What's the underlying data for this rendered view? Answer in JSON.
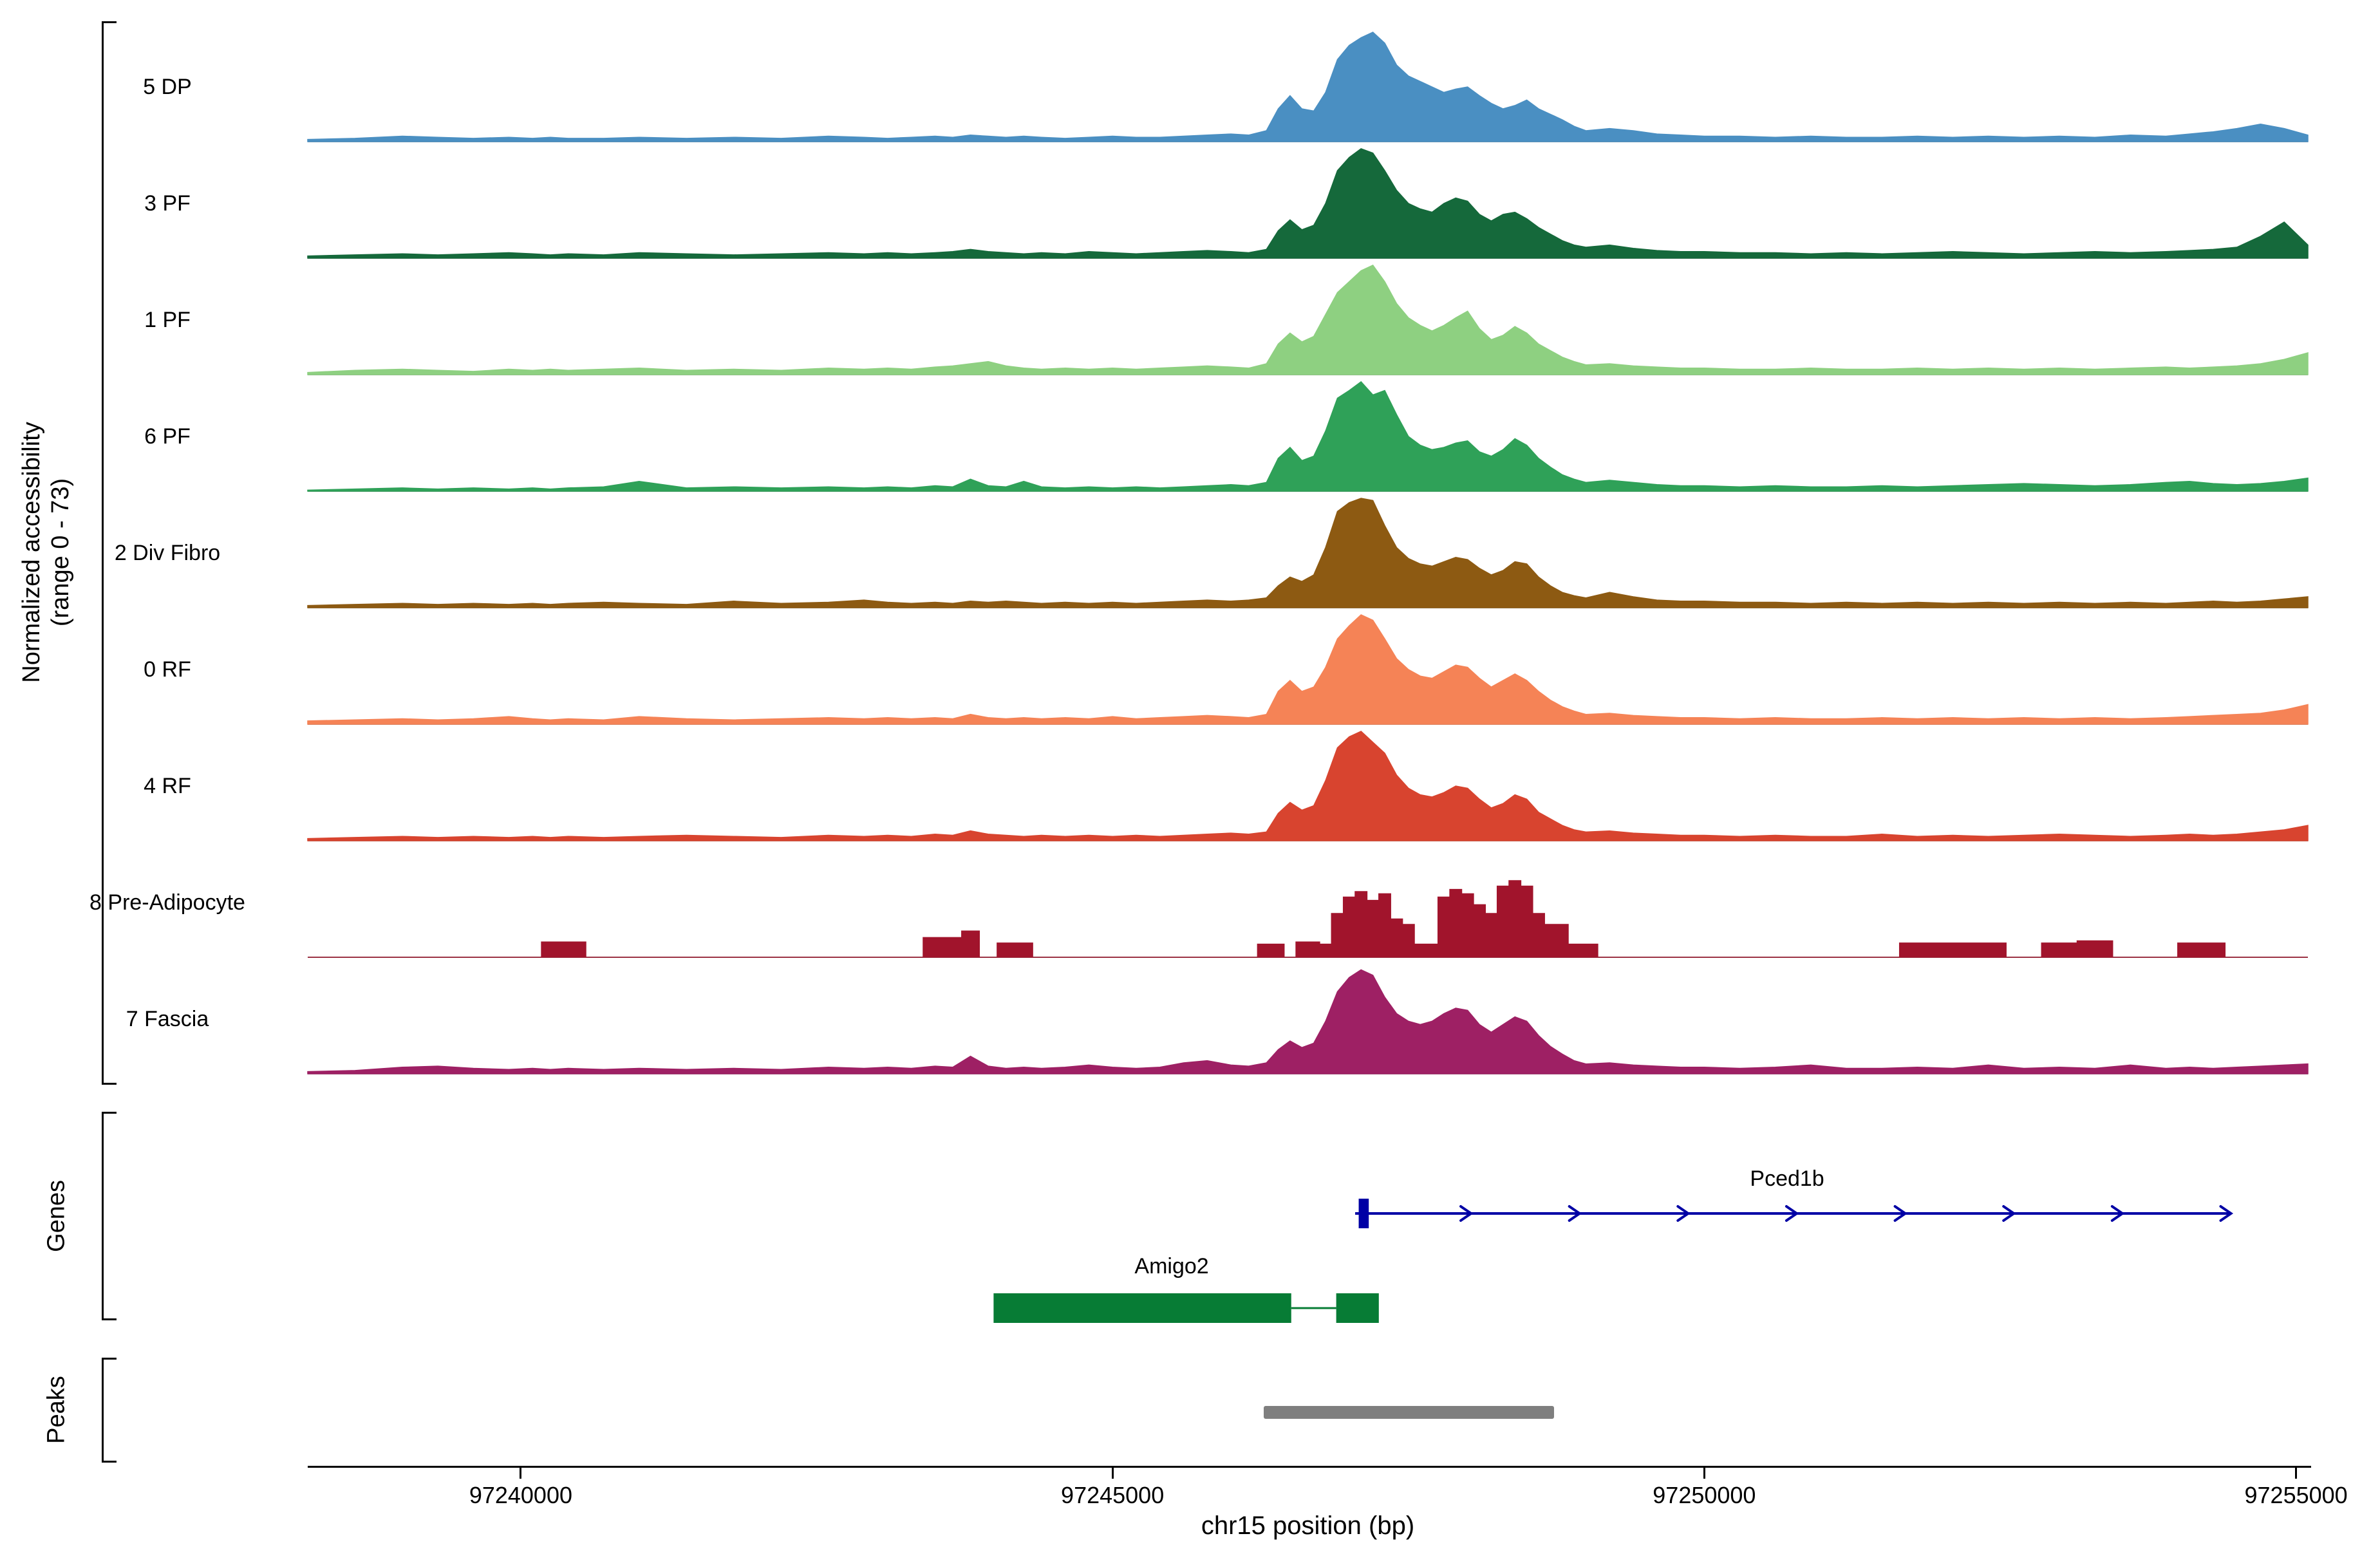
{
  "figure": {
    "y_axis_label_line1": "Normalized accessibility",
    "y_axis_label_line2": "(range 0 - 73)",
    "genes_section_label": "Genes",
    "peaks_section_label": "Peaks"
  },
  "chart_data": {
    "type": "area",
    "title": "",
    "xlabel": "chr15 position (bp)",
    "ylabel": "Normalized accessibility (range 0 - 73)",
    "xlim": [
      97238200,
      97255100
    ],
    "x_ticks": [
      97240000,
      97245000,
      97250000,
      97255000
    ],
    "x_tick_labels": [
      "97240000",
      "97245000",
      "97250000",
      "97255000"
    ],
    "baseline_color": "#8C8C8C",
    "x": [
      97238200,
      97238600,
      97239000,
      97239300,
      97239600,
      97239900,
      97240100,
      97240250,
      97240400,
      97240700,
      97241000,
      97241400,
      97241800,
      97242200,
      97242600,
      97242900,
      97243100,
      97243300,
      97243500,
      97243650,
      97243800,
      97243950,
      97244100,
      97244250,
      97244400,
      97244600,
      97244800,
      97245000,
      97245200,
      97245400,
      97245600,
      97245800,
      97246000,
      97246150,
      97246300,
      97246400,
      97246500,
      97246600,
      97246700,
      97246800,
      97246900,
      97247000,
      97247100,
      97247200,
      97247300,
      97247400,
      97247500,
      97247600,
      97247700,
      97247800,
      97247900,
      97248000,
      97248100,
      97248200,
      97248300,
      97248400,
      97248500,
      97248600,
      97248700,
      97248800,
      97248900,
      97249000,
      97249200,
      97249400,
      97249600,
      97249800,
      97250000,
      97250300,
      97250600,
      97250900,
      97251200,
      97251500,
      97251800,
      97252100,
      97252400,
      97252700,
      97253000,
      97253300,
      97253600,
      97253900,
      97254100,
      97254300,
      97254500,
      97254700,
      97254900,
      97255100
    ],
    "tracks": [
      {
        "label": "5 DP",
        "color": "#4A8FC2",
        "style": "area",
        "values": [
          2,
          3,
          5,
          4,
          3,
          4,
          3,
          4,
          3,
          3,
          4,
          3,
          4,
          3,
          5,
          4,
          3,
          4,
          5,
          4,
          6,
          5,
          4,
          5,
          4,
          3,
          4,
          5,
          4,
          4,
          5,
          6,
          7,
          6,
          10,
          30,
          42,
          30,
          28,
          45,
          75,
          88,
          95,
          100,
          90,
          70,
          60,
          55,
          50,
          45,
          48,
          50,
          42,
          35,
          30,
          33,
          38,
          30,
          25,
          20,
          14,
          10,
          12,
          10,
          7,
          6,
          5,
          5,
          4,
          5,
          4,
          4,
          5,
          4,
          5,
          4,
          5,
          4,
          6,
          5,
          7,
          9,
          12,
          16,
          12,
          6
        ]
      },
      {
        "label": "3 PF",
        "color": "#15693B",
        "style": "area",
        "values": [
          2,
          3,
          4,
          3,
          4,
          5,
          4,
          3,
          4,
          3,
          5,
          4,
          3,
          4,
          5,
          4,
          5,
          4,
          5,
          6,
          8,
          6,
          5,
          4,
          5,
          4,
          6,
          5,
          4,
          5,
          6,
          7,
          6,
          5,
          8,
          25,
          35,
          26,
          30,
          50,
          80,
          92,
          100,
          96,
          80,
          62,
          50,
          45,
          42,
          50,
          55,
          52,
          40,
          34,
          40,
          42,
          36,
          28,
          22,
          16,
          12,
          10,
          12,
          9,
          7,
          6,
          6,
          5,
          5,
          4,
          5,
          4,
          5,
          6,
          5,
          4,
          5,
          6,
          5,
          6,
          7,
          8,
          10,
          20,
          33,
          12
        ]
      },
      {
        "label": "1 PF",
        "color": "#8ED081",
        "style": "area",
        "values": [
          2,
          4,
          5,
          4,
          3,
          5,
          4,
          5,
          4,
          5,
          6,
          4,
          5,
          4,
          6,
          5,
          6,
          5,
          7,
          8,
          10,
          12,
          8,
          6,
          5,
          6,
          5,
          6,
          5,
          6,
          7,
          8,
          7,
          6,
          10,
          28,
          38,
          30,
          35,
          55,
          75,
          85,
          95,
          100,
          85,
          65,
          52,
          45,
          40,
          45,
          52,
          58,
          42,
          32,
          36,
          44,
          38,
          28,
          22,
          16,
          12,
          9,
          10,
          8,
          7,
          6,
          6,
          5,
          5,
          6,
          5,
          5,
          6,
          5,
          6,
          5,
          6,
          5,
          6,
          7,
          6,
          7,
          8,
          10,
          14,
          20
        ]
      },
      {
        "label": "6 PF",
        "color": "#2FA158",
        "style": "area",
        "values": [
          1,
          2,
          3,
          2,
          3,
          2,
          3,
          2,
          3,
          4,
          9,
          3,
          4,
          3,
          4,
          3,
          4,
          3,
          5,
          4,
          11,
          5,
          4,
          9,
          4,
          3,
          4,
          3,
          4,
          3,
          4,
          5,
          6,
          5,
          8,
          30,
          40,
          28,
          32,
          55,
          85,
          92,
          100,
          88,
          92,
          70,
          50,
          42,
          38,
          40,
          44,
          46,
          36,
          32,
          38,
          48,
          42,
          30,
          22,
          15,
          11,
          8,
          10,
          8,
          6,
          5,
          5,
          4,
          5,
          4,
          4,
          5,
          4,
          5,
          6,
          7,
          6,
          5,
          6,
          8,
          9,
          7,
          6,
          7,
          9,
          12
        ]
      },
      {
        "label": "2 Div Fibro",
        "color": "#8D5A12",
        "style": "area",
        "values": [
          2,
          3,
          4,
          3,
          4,
          3,
          4,
          3,
          4,
          5,
          4,
          3,
          6,
          4,
          5,
          7,
          5,
          4,
          5,
          4,
          6,
          5,
          6,
          5,
          4,
          5,
          4,
          5,
          4,
          5,
          6,
          7,
          6,
          7,
          9,
          20,
          28,
          24,
          30,
          55,
          88,
          96,
          100,
          98,
          75,
          55,
          45,
          40,
          38,
          42,
          46,
          44,
          36,
          30,
          34,
          42,
          40,
          28,
          20,
          14,
          11,
          9,
          14,
          10,
          7,
          6,
          6,
          5,
          5,
          4,
          5,
          4,
          5,
          4,
          5,
          4,
          5,
          4,
          5,
          4,
          5,
          6,
          5,
          6,
          8,
          10
        ]
      },
      {
        "label": "0 RF",
        "color": "#F58356",
        "style": "area",
        "values": [
          3,
          4,
          5,
          4,
          5,
          7,
          5,
          4,
          5,
          4,
          7,
          5,
          4,
          5,
          6,
          5,
          6,
          5,
          6,
          5,
          9,
          6,
          5,
          6,
          5,
          6,
          5,
          7,
          5,
          6,
          7,
          8,
          7,
          6,
          9,
          30,
          40,
          30,
          34,
          52,
          78,
          90,
          100,
          95,
          78,
          60,
          50,
          44,
          42,
          48,
          54,
          52,
          42,
          34,
          40,
          46,
          40,
          30,
          22,
          16,
          12,
          9,
          10,
          8,
          7,
          6,
          6,
          5,
          6,
          5,
          5,
          6,
          5,
          6,
          5,
          6,
          5,
          6,
          5,
          6,
          7,
          8,
          9,
          10,
          13,
          18
        ]
      },
      {
        "label": "4 RF",
        "color": "#D8442F",
        "style": "area",
        "values": [
          2,
          3,
          4,
          3,
          4,
          3,
          4,
          3,
          4,
          3,
          4,
          5,
          4,
          3,
          5,
          4,
          5,
          4,
          6,
          5,
          9,
          6,
          5,
          4,
          5,
          4,
          5,
          4,
          5,
          4,
          5,
          6,
          7,
          6,
          8,
          25,
          35,
          28,
          32,
          55,
          85,
          95,
          100,
          90,
          80,
          60,
          48,
          42,
          40,
          44,
          50,
          48,
          38,
          30,
          34,
          42,
          38,
          26,
          20,
          14,
          10,
          8,
          9,
          7,
          6,
          5,
          5,
          4,
          5,
          4,
          4,
          6,
          4,
          5,
          4,
          5,
          6,
          5,
          4,
          5,
          6,
          5,
          6,
          8,
          10,
          14
        ]
      },
      {
        "label": "8 Pre-Adipocyte",
        "color": "#A1142C",
        "style": "step",
        "values": [
          0,
          0,
          0,
          0,
          0,
          0,
          0,
          14,
          14,
          0,
          0,
          0,
          0,
          0,
          0,
          0,
          0,
          0,
          18,
          18,
          24,
          0,
          13,
          13,
          0,
          0,
          0,
          0,
          0,
          0,
          0,
          0,
          0,
          0,
          12,
          12,
          0,
          14,
          14,
          12,
          40,
          55,
          60,
          52,
          58,
          35,
          30,
          12,
          12,
          55,
          62,
          58,
          48,
          40,
          65,
          70,
          65,
          40,
          30,
          30,
          12,
          12,
          0,
          0,
          0,
          0,
          0,
          0,
          0,
          0,
          0,
          0,
          13,
          13,
          13,
          0,
          13,
          15,
          0,
          0,
          13,
          13,
          0,
          0,
          0,
          0
        ]
      },
      {
        "label": "7 Fascia",
        "color": "#9E2064",
        "style": "area",
        "values": [
          2,
          3,
          6,
          7,
          5,
          4,
          5,
          4,
          5,
          4,
          5,
          4,
          5,
          4,
          6,
          5,
          6,
          5,
          7,
          6,
          16,
          7,
          5,
          6,
          5,
          6,
          8,
          6,
          5,
          6,
          10,
          12,
          8,
          7,
          10,
          22,
          30,
          24,
          28,
          48,
          75,
          88,
          95,
          90,
          70,
          55,
          48,
          45,
          48,
          55,
          60,
          58,
          45,
          38,
          45,
          52,
          48,
          35,
          25,
          18,
          12,
          9,
          10,
          8,
          7,
          6,
          6,
          5,
          6,
          8,
          5,
          5,
          6,
          5,
          8,
          5,
          6,
          5,
          8,
          5,
          6,
          5,
          6,
          7,
          8,
          9
        ]
      }
    ],
    "genes": [
      {
        "name": "Pced1b",
        "color": "#0000A5",
        "strand": "+",
        "line_start": 97247050,
        "line_end": 97254450,
        "exon_start": 97247080,
        "exon_end": 97247165,
        "label_pos": 97250700,
        "arrow_count": 8
      },
      {
        "name": "Amigo2",
        "color": "#077C35",
        "exons": [
          [
            97243995,
            97246510
          ],
          [
            97246890,
            97247250
          ]
        ],
        "label_pos": 97245500
      }
    ],
    "peaks": [
      {
        "start": 97246280,
        "end": 97248730,
        "color": "#7F7F7F"
      }
    ]
  }
}
